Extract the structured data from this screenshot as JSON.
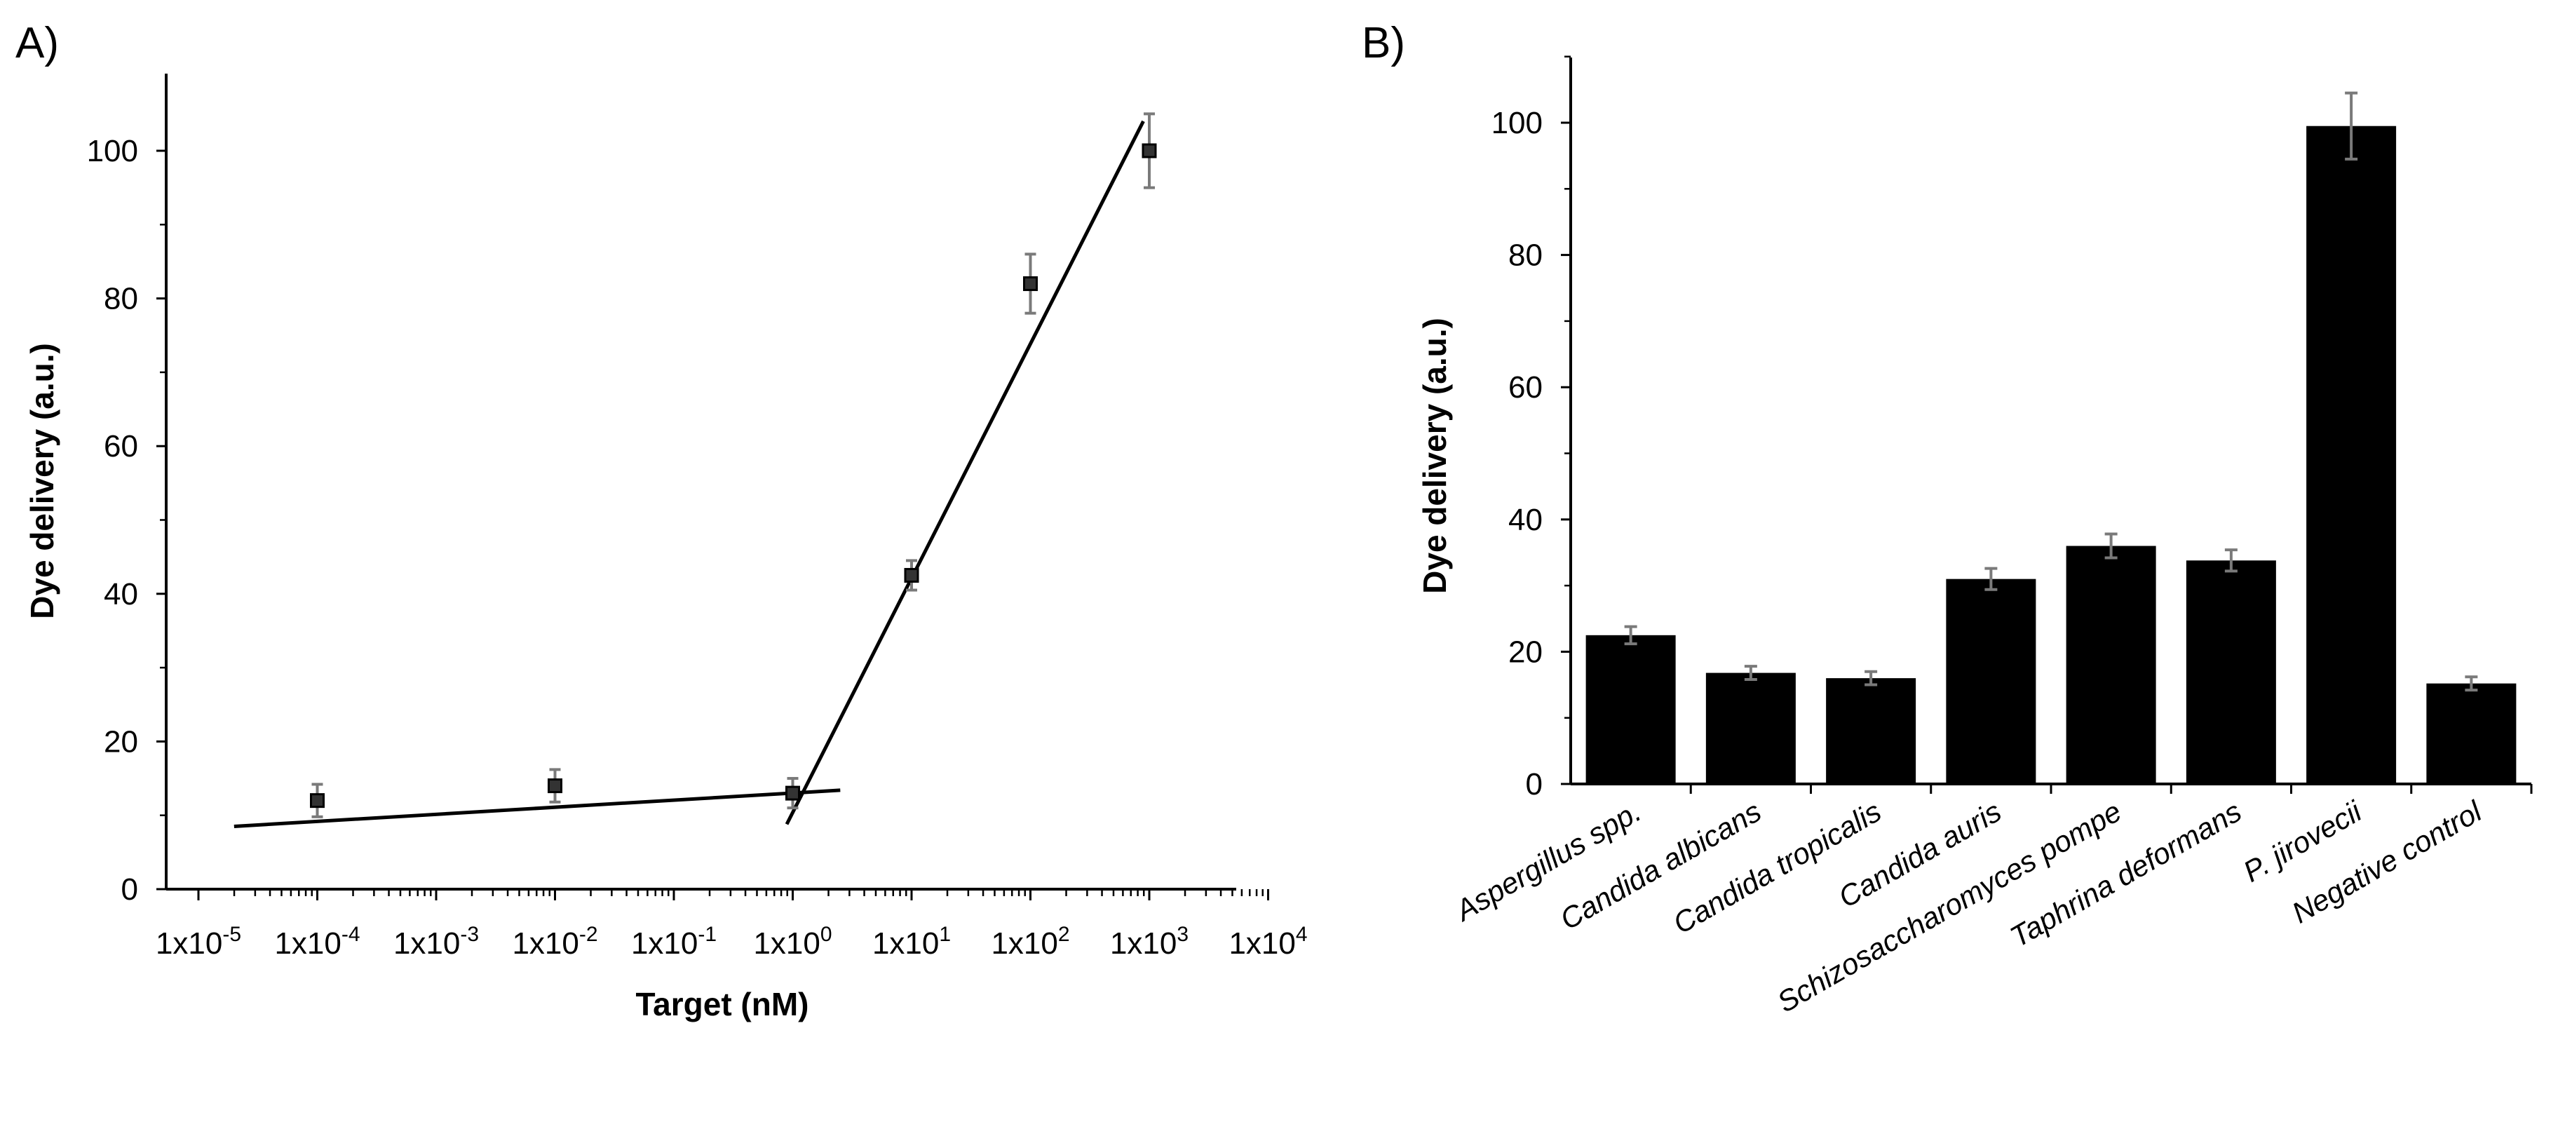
{
  "chart_data": [
    {
      "type": "scatter",
      "panel_label": "A)",
      "title": "",
      "xlabel": "Target (nM)",
      "ylabel": "Dye delivery (a.u.)",
      "xscale": "log",
      "xlim_exp": [
        -5,
        4
      ],
      "ylim": [
        0,
        110
      ],
      "xticks": [
        {
          "base": "1x10",
          "exp": "-5"
        },
        {
          "base": "1x10",
          "exp": "-4"
        },
        {
          "base": "1x10",
          "exp": "-3"
        },
        {
          "base": "1x10",
          "exp": "-2"
        },
        {
          "base": "1x10",
          "exp": "-1"
        },
        {
          "base": "1x10",
          "exp": "0"
        },
        {
          "base": "1x10",
          "exp": "1"
        },
        {
          "base": "1x10",
          "exp": "2"
        },
        {
          "base": "1x10",
          "exp": "3"
        },
        {
          "base": "1x10",
          "exp": "4"
        }
      ],
      "yticks": [
        "0",
        "20",
        "40",
        "60",
        "80",
        "100"
      ],
      "points": [
        {
          "x_exp": -4,
          "y": 12,
          "err": 2.2
        },
        {
          "x_exp": -2,
          "y": 14,
          "err": 2.2
        },
        {
          "x_exp": 0,
          "y": 13,
          "err": 2.0
        },
        {
          "x_exp": 1,
          "y": 42.5,
          "err": 2.0
        },
        {
          "x_exp": 2,
          "y": 82,
          "err": 4.0
        },
        {
          "x_exp": 3,
          "y": 100,
          "err": 5.0
        }
      ],
      "fit_lines": [
        {
          "x_exp": [
            -4.7,
            0.4
          ],
          "y": [
            8.5,
            13.4
          ]
        },
        {
          "x_exp": [
            -0.05,
            2.95
          ],
          "y": [
            8.8,
            104
          ]
        }
      ]
    },
    {
      "type": "bar",
      "panel_label": "B)",
      "title": "",
      "xlabel": "",
      "ylabel": "Dye delivery (a.u.)",
      "ylim": [
        0,
        110
      ],
      "yticks": [
        "0",
        "20",
        "40",
        "60",
        "80",
        "100"
      ],
      "categories": [
        "Aspergillus spp.",
        "Candida albicans",
        "Candida tropicalis",
        "Candida  auris",
        "Schizosaccharomyces pompe",
        "Taphrina deformans",
        "P. jirovecii",
        "Negative control"
      ],
      "values": [
        22.5,
        16.8,
        16,
        31,
        36,
        33.8,
        99.5,
        15.2
      ],
      "errors": [
        1.3,
        1.0,
        1.0,
        1.6,
        1.8,
        1.6,
        5.0,
        1.0
      ]
    }
  ]
}
